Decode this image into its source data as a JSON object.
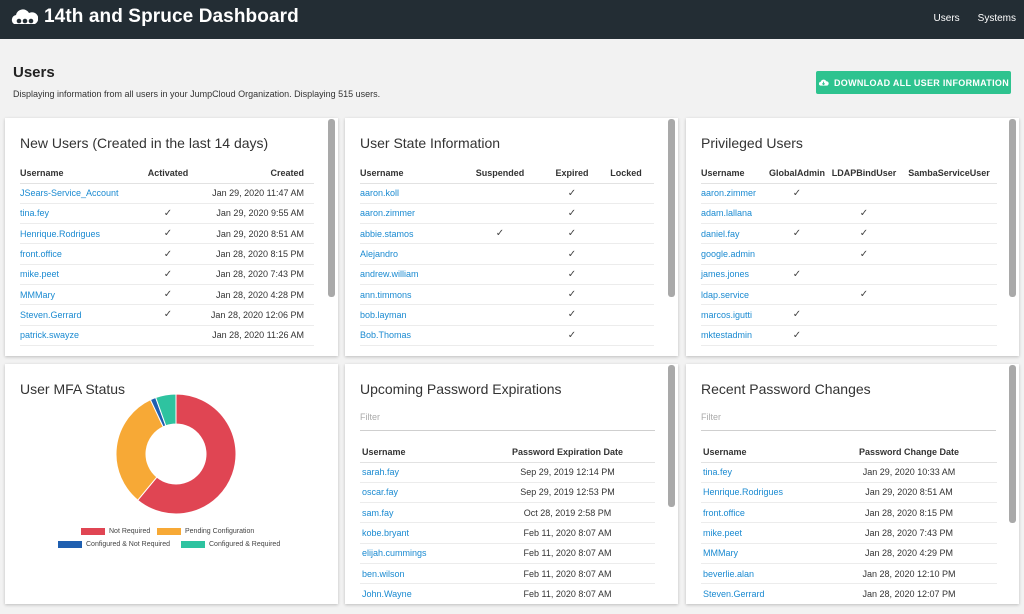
{
  "app": {
    "title": "14th and Spruce Dashboard",
    "nav": [
      "Users",
      "Systems"
    ]
  },
  "page": {
    "title": "Users",
    "subtitle": "Displaying information from all users in your JumpCloud Organization. Displaying 515 users.",
    "download_label": "DOWNLOAD ALL USER INFORMATION"
  },
  "colors": {
    "topbar": "#232d34",
    "accent": "#2ec38f",
    "link": "#1a8ad1"
  },
  "new_users": {
    "title": "New Users (Created in the last 14 days)",
    "headers": [
      "Username",
      "Activated",
      "Created"
    ],
    "rows": [
      {
        "username": "JSears-Service_Account",
        "activated": "",
        "created": "Jan 29, 2020 11:47 AM"
      },
      {
        "username": "tina.fey",
        "activated": "✓",
        "created": "Jan 29, 2020 9:55 AM"
      },
      {
        "username": "Henrique.Rodrigues",
        "activated": "✓",
        "created": "Jan 29, 2020 8:51 AM"
      },
      {
        "username": "front.office",
        "activated": "✓",
        "created": "Jan 28, 2020 8:15 PM"
      },
      {
        "username": "mike.peet",
        "activated": "✓",
        "created": "Jan 28, 2020 7:43 PM"
      },
      {
        "username": "MMMary",
        "activated": "✓",
        "created": "Jan 28, 2020 4:28 PM"
      },
      {
        "username": "Steven.Gerrard",
        "activated": "✓",
        "created": "Jan 28, 2020 12:06 PM"
      },
      {
        "username": "patrick.swayze",
        "activated": "",
        "created": "Jan 28, 2020 11:26 AM"
      }
    ]
  },
  "user_state": {
    "title": "User State Information",
    "headers": [
      "Username",
      "Suspended",
      "Expired",
      "Locked"
    ],
    "rows": [
      {
        "username": "aaron.koll",
        "suspended": "",
        "expired": "✓",
        "locked": ""
      },
      {
        "username": "aaron.zimmer",
        "suspended": "",
        "expired": "✓",
        "locked": ""
      },
      {
        "username": "abbie.stamos",
        "suspended": "✓",
        "expired": "✓",
        "locked": ""
      },
      {
        "username": "Alejandro",
        "suspended": "",
        "expired": "✓",
        "locked": ""
      },
      {
        "username": "andrew.william",
        "suspended": "",
        "expired": "✓",
        "locked": ""
      },
      {
        "username": "ann.timmons",
        "suspended": "",
        "expired": "✓",
        "locked": ""
      },
      {
        "username": "bob.layman",
        "suspended": "",
        "expired": "✓",
        "locked": ""
      },
      {
        "username": "Bob.Thomas",
        "suspended": "",
        "expired": "✓",
        "locked": ""
      }
    ]
  },
  "privileged": {
    "title": "Privileged Users",
    "headers": [
      "Username",
      "GlobalAdmin",
      "LDAPBindUser",
      "SambaServiceUser"
    ],
    "rows": [
      {
        "username": "aaron.zimmer",
        "global": "✓",
        "ldap": "",
        "samba": ""
      },
      {
        "username": "adam.lallana",
        "global": "",
        "ldap": "✓",
        "samba": ""
      },
      {
        "username": "daniel.fay",
        "global": "✓",
        "ldap": "✓",
        "samba": ""
      },
      {
        "username": "google.admin",
        "global": "",
        "ldap": "✓",
        "samba": ""
      },
      {
        "username": "james.jones",
        "global": "✓",
        "ldap": "",
        "samba": ""
      },
      {
        "username": "ldap.service",
        "global": "",
        "ldap": "✓",
        "samba": ""
      },
      {
        "username": "marcos.igutti",
        "global": "✓",
        "ldap": "",
        "samba": ""
      },
      {
        "username": "mktestadmin",
        "global": "✓",
        "ldap": "",
        "samba": ""
      }
    ]
  },
  "mfa": {
    "title": "User MFA Status",
    "chart_data": {
      "type": "pie",
      "categories": [
        "Not Required",
        "Pending Configuration",
        "Configured & Not Required",
        "Configured & Required"
      ],
      "values": [
        61,
        32,
        1.5,
        5.5
      ],
      "colors": [
        "#e04553",
        "#f7a936",
        "#1f5fb0",
        "#2ec3a0"
      ],
      "donut": true
    }
  },
  "expirations": {
    "title": "Upcoming Password Expirations",
    "filter_placeholder": "Filter",
    "headers": [
      "Username",
      "Password Expiration Date"
    ],
    "rows": [
      {
        "username": "sarah.fay",
        "date": "Sep 29, 2019 12:14 PM"
      },
      {
        "username": "oscar.fay",
        "date": "Sep 29, 2019 12:53 PM"
      },
      {
        "username": "sam.fay",
        "date": "Oct 28, 2019 2:58 PM"
      },
      {
        "username": "kobe.bryant",
        "date": "Feb 11, 2020 8:07 AM"
      },
      {
        "username": "elijah.cummings",
        "date": "Feb 11, 2020 8:07 AM"
      },
      {
        "username": "ben.wilson",
        "date": "Feb 11, 2020 8:07 AM"
      },
      {
        "username": "John.Wayne",
        "date": "Feb 11, 2020 8:07 AM"
      }
    ]
  },
  "changes": {
    "title": "Recent Password Changes",
    "filter_placeholder": "Filter",
    "headers": [
      "Username",
      "Password Change Date"
    ],
    "rows": [
      {
        "username": "tina.fey",
        "date": "Jan 29, 2020 10:33 AM"
      },
      {
        "username": "Henrique.Rodrigues",
        "date": "Jan 29, 2020 8:51 AM"
      },
      {
        "username": "front.office",
        "date": "Jan 28, 2020 8:15 PM"
      },
      {
        "username": "mike.peet",
        "date": "Jan 28, 2020 7:43 PM"
      },
      {
        "username": "MMMary",
        "date": "Jan 28, 2020 4:29 PM"
      },
      {
        "username": "beverlie.alan",
        "date": "Jan 28, 2020 12:10 PM"
      },
      {
        "username": "Steven.Gerrard",
        "date": "Jan 28, 2020 12:07 PM"
      }
    ]
  }
}
